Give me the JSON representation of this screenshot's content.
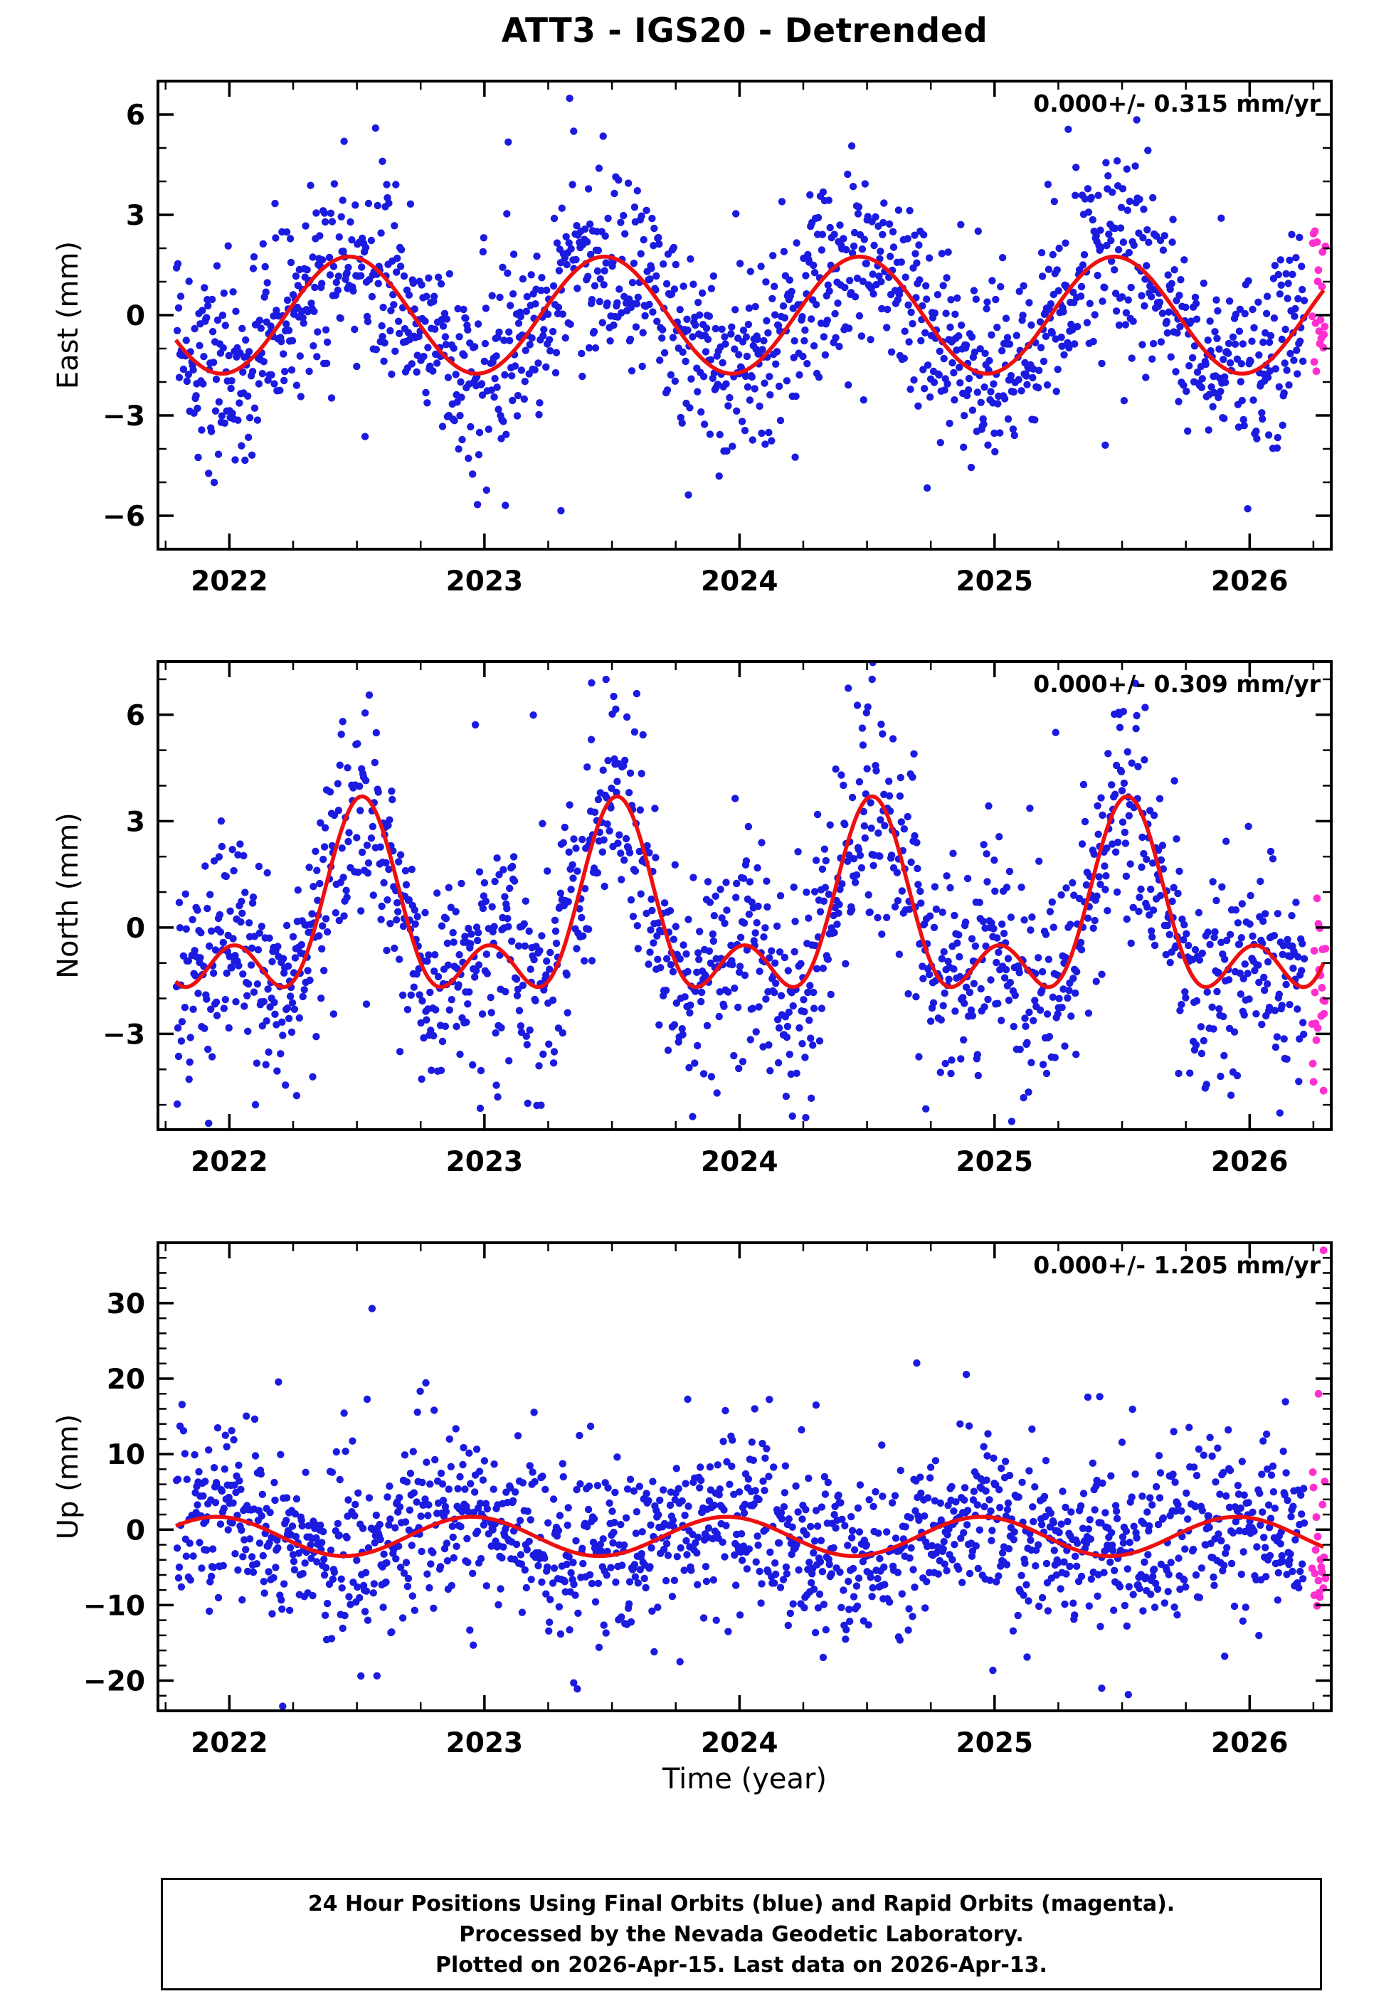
{
  "title": "ATT3 - IGS20 - Detrended",
  "xlabel": "Time (year)",
  "colors": {
    "final": "#1b1be0",
    "rapid": "#ff2fd0",
    "model": "#ee0f0f",
    "frame": "#000000",
    "background": "#ffffff"
  },
  "footer": {
    "line1": "24 Hour Positions Using Final Orbits (blue) and Rapid Orbits (magenta).",
    "line2": "Processed by the Nevada Geodetic Laboratory.",
    "line3": "Plotted on 2026-Apr-15. Last data on 2026-Apr-13."
  },
  "chart_data": [
    {
      "type": "scatter",
      "panel": "east",
      "ylabel": "East (mm)",
      "annotation": "0.000+/- 0.315 mm/yr",
      "x_range": [
        2021.72,
        2026.32
      ],
      "y_range": [
        -7.0,
        7.0
      ],
      "x_ticks": [
        2022,
        2023,
        2024,
        2025,
        2026
      ],
      "y_ticks": [
        -6,
        -3,
        0,
        3,
        6
      ],
      "y_minor_step": 1,
      "x_minor_step": 0.25,
      "data_span": [
        2021.79,
        2026.215
      ],
      "rapid_span": [
        2026.245,
        2026.298
      ],
      "seed": 101,
      "noise_mm": 1.4,
      "tail_frac": 0.07,
      "model": {
        "mean": 0.0,
        "a1": 1.75,
        "p1": 0.47,
        "a2": 0.0,
        "p2": 0.0
      },
      "outliers": {
        "final": [
          [
            2023.35,
            5.5
          ],
          [
            2023.3,
            -5.85
          ],
          [
            2022.6,
            4.6
          ]
        ],
        "rapid": []
      }
    },
    {
      "type": "scatter",
      "panel": "north",
      "ylabel": "North (mm)",
      "annotation": "0.000+/- 0.309 mm/yr",
      "x_range": [
        2021.72,
        2026.32
      ],
      "y_range": [
        -5.7,
        7.5
      ],
      "x_ticks": [
        2022,
        2023,
        2024,
        2025,
        2026
      ],
      "y_ticks": [
        -3,
        0,
        3,
        6
      ],
      "y_minor_step": 1,
      "x_minor_step": 0.25,
      "data_span": [
        2021.79,
        2026.215
      ],
      "rapid_span": [
        2026.245,
        2026.298
      ],
      "seed": 202,
      "noise_mm": 1.5,
      "tail_frac": 0.07,
      "model": {
        "mean": 0.15,
        "a1": 2.1,
        "p1": 0.52,
        "a2": 1.45,
        "p2": 0.52
      },
      "outliers": {
        "final": [
          [
            2023.42,
            6.9
          ],
          [
            2024.52,
            7.0
          ]
        ],
        "rapid": [
          [
            2026.29,
            -4.6
          ]
        ]
      }
    },
    {
      "type": "scatter",
      "panel": "up",
      "ylabel": "Up (mm)",
      "annotation": "0.000+/- 1.205 mm/yr",
      "x_range": [
        2021.72,
        2026.32
      ],
      "y_range": [
        -24,
        38
      ],
      "x_ticks": [
        2022,
        2023,
        2024,
        2025,
        2026
      ],
      "y_ticks": [
        -20,
        -10,
        0,
        10,
        20,
        30
      ],
      "y_minor_step": 2,
      "x_minor_step": 0.25,
      "data_span": [
        2021.79,
        2026.215
      ],
      "rapid_span": [
        2026.245,
        2026.298
      ],
      "seed": 303,
      "noise_mm": 5.4,
      "tail_frac": 0.08,
      "model": {
        "mean": -0.9,
        "a1": 2.6,
        "p1": 0.95,
        "a2": 0.0,
        "p2": 0.0
      },
      "outliers": {
        "final": [
          [
            2025.42,
            -21.0
          ],
          [
            2023.35,
            -20.3
          ],
          [
            2024.3,
            16.5
          ]
        ],
        "rapid": [
          [
            2026.29,
            37.0
          ],
          [
            2026.27,
            18.0
          ]
        ]
      }
    }
  ]
}
